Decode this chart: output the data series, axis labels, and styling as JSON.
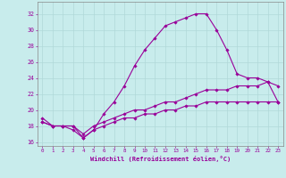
{
  "xlabel": "Windchill (Refroidissement éolien,°C)",
  "background_color": "#c8ecec",
  "grid_color": "#b0d8d8",
  "line_color": "#990099",
  "ylim": [
    15.5,
    33.5
  ],
  "xlim": [
    -0.5,
    23.5
  ],
  "yticks": [
    16,
    18,
    20,
    22,
    24,
    26,
    28,
    30,
    32
  ],
  "xticks": [
    0,
    1,
    2,
    3,
    4,
    5,
    6,
    7,
    8,
    9,
    10,
    11,
    12,
    13,
    14,
    15,
    16,
    17,
    18,
    19,
    20,
    21,
    22,
    23
  ],
  "line1_x": [
    0,
    1,
    2,
    3,
    4,
    5,
    6,
    7,
    8,
    9,
    10,
    11,
    12,
    13,
    14,
    15,
    16,
    17,
    18,
    19,
    20,
    21,
    22,
    23
  ],
  "line1_y": [
    19.0,
    18.0,
    18.0,
    18.0,
    16.5,
    17.5,
    19.5,
    21.0,
    23.0,
    25.5,
    27.5,
    29.0,
    30.5,
    31.0,
    31.5,
    32.0,
    32.0,
    30.0,
    27.5,
    24.5,
    24.0,
    24.0,
    23.5,
    21.0
  ],
  "line2_x": [
    0,
    1,
    2,
    3,
    4,
    5,
    6,
    7,
    8,
    9,
    10,
    11,
    12,
    13,
    14,
    15,
    16,
    17,
    18,
    19,
    20,
    21,
    22,
    23
  ],
  "line2_y": [
    18.5,
    18.0,
    18.0,
    18.0,
    17.0,
    18.0,
    18.5,
    19.0,
    19.5,
    20.0,
    20.0,
    20.5,
    21.0,
    21.0,
    21.5,
    22.0,
    22.5,
    22.5,
    22.5,
    23.0,
    23.0,
    23.0,
    23.5,
    23.0
  ],
  "line3_x": [
    0,
    1,
    2,
    3,
    4,
    5,
    6,
    7,
    8,
    9,
    10,
    11,
    12,
    13,
    14,
    15,
    16,
    17,
    18,
    19,
    20,
    21,
    22,
    23
  ],
  "line3_y": [
    18.5,
    18.0,
    18.0,
    17.5,
    16.5,
    17.5,
    18.0,
    18.5,
    19.0,
    19.0,
    19.5,
    19.5,
    20.0,
    20.0,
    20.5,
    20.5,
    21.0,
    21.0,
    21.0,
    21.0,
    21.0,
    21.0,
    21.0,
    21.0
  ]
}
